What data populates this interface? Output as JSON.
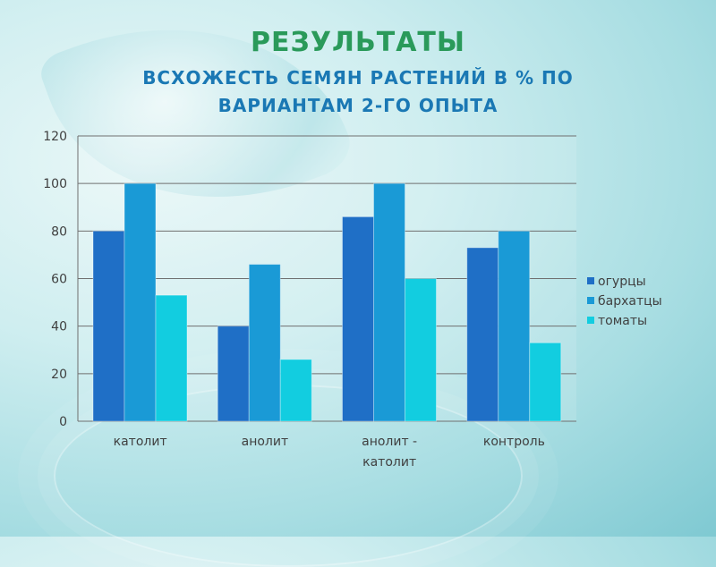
{
  "title": "РЕЗУЛЬТАТЫ",
  "subtitle_line1": "ВСХОЖЕСТЬ СЕМЯН РАСТЕНИЙ В % ПО",
  "subtitle_line2": "ВАРИАНТАМ 2-ГО ОПЫТА",
  "colors": {
    "title": "#2a9a5a",
    "subtitle": "#1a78b4",
    "series": [
      "#1f6fc6",
      "#1a9ad6",
      "#12cde0"
    ]
  },
  "chart_data": {
    "type": "bar",
    "categories": [
      [
        "католит"
      ],
      [
        "анолит"
      ],
      [
        "анолит -",
        "католит"
      ],
      [
        "контроль"
      ]
    ],
    "series": [
      {
        "name": "огурцы",
        "values": [
          80,
          40,
          86,
          73
        ]
      },
      {
        "name": "бархатцы",
        "values": [
          100,
          66,
          100,
          80
        ]
      },
      {
        "name": "томаты",
        "values": [
          53,
          26,
          60,
          33
        ]
      }
    ],
    "ylim": [
      0,
      120
    ],
    "yticks": [
      0,
      20,
      40,
      60,
      80,
      100,
      120
    ],
    "grid": true,
    "legend_position": "right"
  }
}
